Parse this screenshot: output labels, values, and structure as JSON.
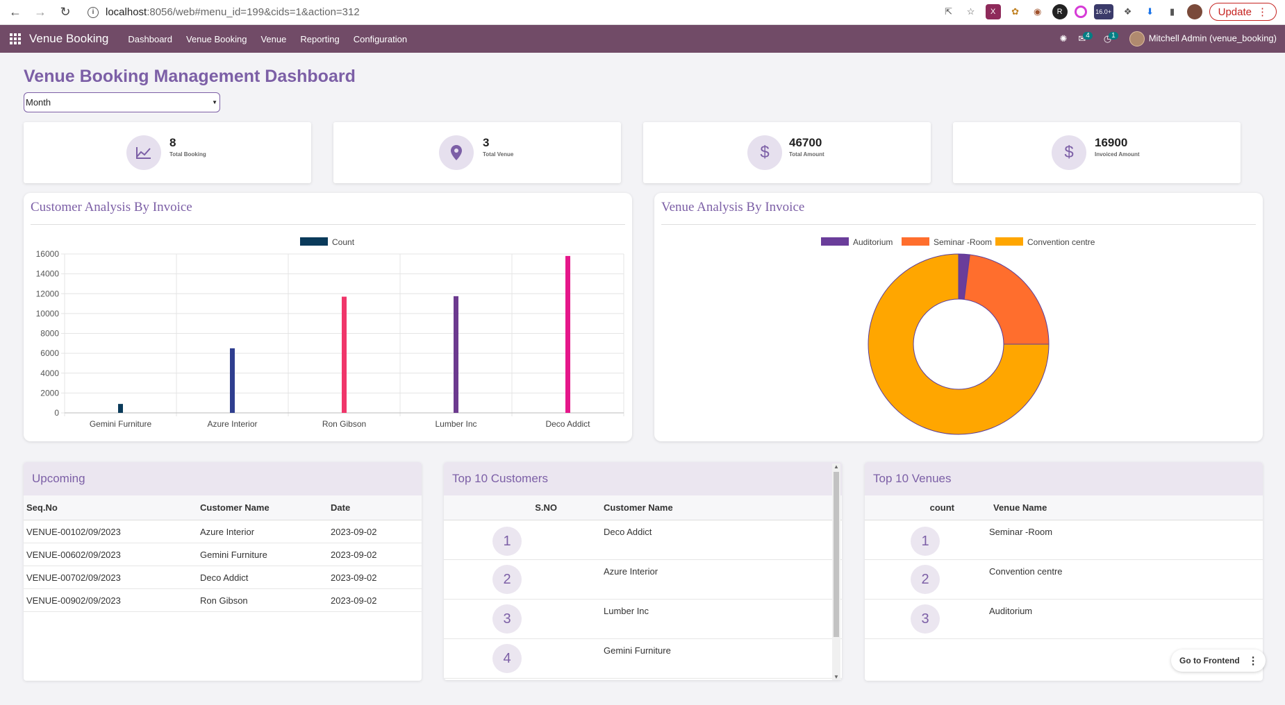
{
  "browser": {
    "url_host": "localhost",
    "url_rest": ":8056/web#menu_id=199&cids=1&action=312",
    "update_label": "Update",
    "ext_badge": "16.0+"
  },
  "navbar": {
    "brand": "Venue Booking",
    "menu": [
      "Dashboard",
      "Venue Booking",
      "Venue",
      "Reporting",
      "Configuration"
    ],
    "messages_count": "4",
    "activities_count": "1",
    "user": "Mitchell Admin (venue_booking)",
    "accent": "#714b67"
  },
  "dashboard": {
    "title": "Venue Booking Management Dashboard",
    "period": "Month"
  },
  "kpis": [
    {
      "value": "8",
      "label": "Total Booking",
      "icon": "chart-line-icon"
    },
    {
      "value": "3",
      "label": "Total Venue",
      "icon": "map-pin-icon"
    },
    {
      "value": "46700",
      "label": "Total Amount",
      "icon": "dollar-icon"
    },
    {
      "value": "16900",
      "label": "Invoiced Amount",
      "icon": "dollar-icon"
    }
  ],
  "chart_data": [
    {
      "type": "bar",
      "title": "Customer Analysis By Invoice",
      "legend": [
        "Count"
      ],
      "legend_position": "top",
      "categories": [
        "Gemini Furniture",
        "Azure Interior",
        "Ron Gibson",
        "Lumber Inc",
        "Deco Addict"
      ],
      "series": [
        {
          "name": "Count",
          "values": [
            900,
            6500,
            11700,
            11750,
            15800
          ]
        }
      ],
      "bar_colors": [
        "#0a3a5a",
        "#2f3e8f",
        "#f0366a",
        "#6c3a8f",
        "#e5178a"
      ],
      "ylim": [
        0,
        16000
      ],
      "yticks": [
        0,
        2000,
        4000,
        6000,
        8000,
        10000,
        12000,
        14000,
        16000
      ],
      "grid": true
    },
    {
      "type": "pie",
      "title": "Venue Analysis By Invoice",
      "legend_position": "top",
      "labels": [
        "Auditorium",
        "Seminar -Room",
        "Convention centre"
      ],
      "values": [
        2,
        23,
        75
      ],
      "colors": [
        "#6a3d9a",
        "#ff6e2d",
        "#ffa600"
      ]
    }
  ],
  "upcoming": {
    "title": "Upcoming",
    "columns": [
      "Seq.No",
      "Customer Name",
      "Date"
    ],
    "rows": [
      [
        "VENUE-00102/09/2023",
        "Azure Interior",
        "2023-09-02"
      ],
      [
        "VENUE-00602/09/2023",
        "Gemini Furniture",
        "2023-09-02"
      ],
      [
        "VENUE-00702/09/2023",
        "Deco Addict",
        "2023-09-02"
      ],
      [
        "VENUE-00902/09/2023",
        "Ron Gibson",
        "2023-09-02"
      ]
    ]
  },
  "top_customers": {
    "title": "Top 10 Customers",
    "columns": [
      "S.NO",
      "Customer Name"
    ],
    "rows": [
      [
        "1",
        "Deco Addict"
      ],
      [
        "2",
        "Azure Interior"
      ],
      [
        "3",
        "Lumber Inc"
      ],
      [
        "4",
        "Gemini Furniture"
      ]
    ]
  },
  "top_venues": {
    "title": "Top 10 Venues",
    "columns": [
      "count",
      "Venue Name"
    ],
    "rows": [
      [
        "1",
        "Seminar -Room"
      ],
      [
        "2",
        "Convention centre"
      ],
      [
        "3",
        "Auditorium"
      ]
    ]
  },
  "frontend_button": "Go to Frontend"
}
